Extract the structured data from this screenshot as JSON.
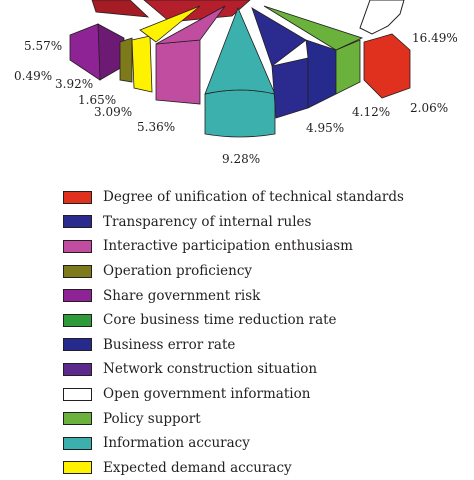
{
  "chart_data": {
    "type": "pie",
    "title": "",
    "slices": [
      {
        "label": "Degree of unification of technical standards",
        "value": 2.06,
        "color": "#e0301e"
      },
      {
        "label": "Transparency of internal rules",
        "value": 4.95,
        "color": "#2b2a8f"
      },
      {
        "label": "Interactive participation enthusiasm",
        "value": 5.36,
        "color": "#c04da0"
      },
      {
        "label": "Operation proficiency",
        "value": 0.49,
        "color": "#7d7a1c"
      },
      {
        "label": "Share government risk",
        "value": 5.57,
        "color": "#8e2396"
      },
      {
        "label": "Core business time reduction rate",
        "value": 4.12,
        "color": "#2e9a3a"
      },
      {
        "label": "Business error rate",
        "value": 3.92,
        "color": "#262a8c"
      },
      {
        "label": "Network construction situation",
        "value": 1.65,
        "color": "#5b2a8c"
      },
      {
        "label": "Open government information",
        "value": 16.49,
        "color": "#ffffff"
      },
      {
        "label": "Policy support",
        "value": 3.09,
        "color": "#6ab23c"
      },
      {
        "label": "Information accuracy",
        "value": 9.28,
        "color": "#3bb0ad"
      },
      {
        "label": "Expected demand accuracy",
        "value": null,
        "color": "#fff200"
      }
    ],
    "visible_value_labels": [
      "16.49%",
      "5.57%",
      "0.49%",
      "3.92%",
      "1.65%",
      "3.09%",
      "5.36%",
      "4.95%",
      "4.12%",
      "2.06%",
      "9.28%"
    ],
    "legend_position": "bottom",
    "exploded_3d": true
  }
}
